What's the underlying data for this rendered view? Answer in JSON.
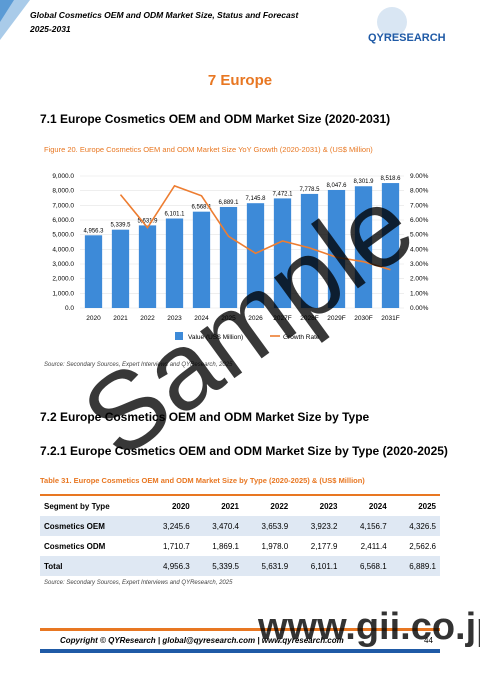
{
  "header": {
    "title": "Global Cosmetics OEM and ODM Market Size, Status and Forecast 2025-2031",
    "logo": "QYRESEARCH"
  },
  "section": "7  Europe",
  "subsection1": "7.1  Europe Cosmetics OEM and ODM Market Size (2020-2031)",
  "chart_data": {
    "type": "bar",
    "title": "Figure 20.  Europe Cosmetics OEM and ODM Market Size YoY Growth (2020-2031) & (US$ Million)",
    "categories": [
      "2020",
      "2021",
      "2022",
      "2023",
      "2024",
      "2025",
      "2026",
      "2027F",
      "2028F",
      "2029F",
      "2030F",
      "2031F"
    ],
    "series": [
      {
        "name": "Value (US$ Million)",
        "type": "bar",
        "color": "#3d8ad8",
        "values": [
          4956.3,
          5339.5,
          5631.9,
          6101.1,
          6568.1,
          6889.1,
          7145.8,
          7472.1,
          7778.5,
          8047.6,
          8301.9,
          8518.6
        ],
        "value_labels": [
          "4,956.3",
          "5,339.5",
          "5,631.9",
          "6,101.1",
          "6,568.1",
          "6,889.1",
          "7,145.8",
          "7,472.1",
          "7,778.5",
          "8,047.6",
          "8,301.9",
          "8,518.6"
        ]
      },
      {
        "name": "Growth Rate",
        "type": "line",
        "axis": "y2",
        "color": "#ed7d31",
        "values": [
          null,
          7.73,
          5.48,
          8.33,
          7.65,
          4.89,
          3.73,
          4.57,
          4.1,
          3.46,
          3.16,
          2.61
        ]
      }
    ],
    "ylim": [
      0,
      9000
    ],
    "yticks": [
      {
        "value": 0,
        "label": "0.0"
      },
      {
        "value": 1000,
        "label": "1,000.0"
      },
      {
        "value": 2000,
        "label": "2,000.0"
      },
      {
        "value": 3000,
        "label": "3,000.0"
      },
      {
        "value": 4000,
        "label": "4,000.0"
      },
      {
        "value": 5000,
        "label": "5,000.0"
      },
      {
        "value": 6000,
        "label": "6,000.0"
      },
      {
        "value": 7000,
        "label": "7,000.0"
      },
      {
        "value": 8000,
        "label": "8,000.0"
      },
      {
        "value": 9000,
        "label": "9,000.0"
      }
    ],
    "y2lim": [
      0,
      9
    ],
    "y2ticks": [
      {
        "value": 0,
        "label": "0.00%"
      },
      {
        "value": 1,
        "label": "1.00%"
      },
      {
        "value": 2,
        "label": "2.00%"
      },
      {
        "value": 3,
        "label": "3.00%"
      },
      {
        "value": 4,
        "label": "4.00%"
      },
      {
        "value": 5,
        "label": "5.00%"
      },
      {
        "value": 6,
        "label": "6.00%"
      },
      {
        "value": 7,
        "label": "7.00%"
      },
      {
        "value": 8,
        "label": "8.00%"
      },
      {
        "value": 9,
        "label": "9.00%"
      }
    ],
    "legend": "bottom"
  },
  "source1": "Source: Secondary Sources, Expert Interviews and QYResearch, 2025",
  "subsection2": "7.2  Europe Cosmetics OEM and ODM Market Size by Type",
  "subsection3": "7.2.1  Europe Cosmetics OEM and ODM Market Size by Type (2020-2025)",
  "table": {
    "caption": "Table 31.  Europe Cosmetics OEM and ODM Market Size by Type (2020-2025) & (US$ Million)",
    "header": [
      "Segment by Type",
      "2020",
      "2021",
      "2022",
      "2023",
      "2024",
      "2025"
    ],
    "rows": [
      [
        "Cosmetics OEM",
        "3,245.6",
        "3,470.4",
        "3,653.9",
        "3,923.2",
        "4,156.7",
        "4,326.5"
      ],
      [
        "Cosmetics ODM",
        "1,710.7",
        "1,869.1",
        "1,978.0",
        "2,177.9",
        "2,411.4",
        "2,562.6"
      ],
      [
        "Total",
        "4,956.3",
        "5,339.5",
        "5,631.9",
        "6,101.1",
        "6,568.1",
        "6,889.1"
      ]
    ]
  },
  "source2": "Source: Secondary Sources, Expert Interviews and QYResearch, 2025",
  "footer": {
    "text": "Copyright © QYResearch | global@qyresearch.com | www.qyresearch.com",
    "page": "44"
  },
  "watermark": {
    "main": "Sample",
    "site": "www.gii.co.jp"
  }
}
